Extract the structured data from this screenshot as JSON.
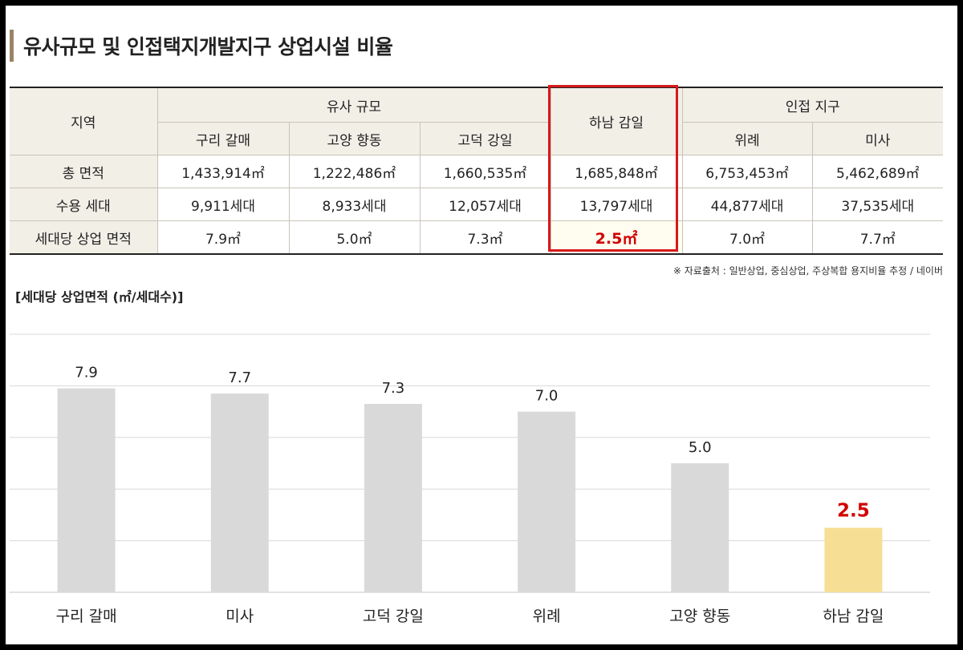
{
  "title": "유사규모 및 인접택지개발지구 상업시설 비율",
  "table": {
    "corner": "지역",
    "groups": [
      "유사 규모",
      "하남 감일",
      "인접 지구"
    ],
    "columns": [
      "구리 갈매",
      "고양 향동",
      "고덕 강일",
      "하남 감일",
      "위례",
      "미사"
    ],
    "rows": [
      {
        "label": "총 면적",
        "values": [
          "1,433,914㎡",
          "1,222,486㎡",
          "1,660,535㎡",
          "1,685,848㎡",
          "6,753,453㎡",
          "5,462,689㎡"
        ]
      },
      {
        "label": "수용 세대",
        "values": [
          "9,911세대",
          "8,933세대",
          "12,057세대",
          "13,797세대",
          "44,877세대",
          "37,535세대"
        ]
      },
      {
        "label": "세대당 상업 면적",
        "values": [
          "7.9㎡",
          "5.0㎡",
          "7.3㎡",
          "2.5㎡",
          "7.0㎡",
          "7.7㎡"
        ]
      }
    ]
  },
  "source": "※ 자료출처 : 일반상업, 중심상업, 주상복합 용지비율 추정 / 네이버",
  "chart_title": "[세대당 상업면적 (㎡/세대수)]",
  "chart_data": {
    "type": "bar",
    "title": "[세대당 상업면적 (㎡/세대수)]",
    "categories": [
      "구리 갈매",
      "미사",
      "고덕 강일",
      "위례",
      "고양 향동",
      "하남 감일"
    ],
    "values": [
      7.9,
      7.7,
      7.3,
      7.0,
      5.0,
      2.5
    ],
    "value_labels": [
      "7.9",
      "7.7",
      "7.3",
      "7.0",
      "5.0",
      "2.5"
    ],
    "highlight_index": 5,
    "ylim": [
      0,
      10
    ],
    "grid": true,
    "colors": {
      "bar": "#d9d9d9",
      "highlight_bar": "#f6df94",
      "highlight_label": "#d10000",
      "label": "#222222",
      "grid": "#d8d8d8"
    }
  },
  "colors": {
    "title_accent": "#9a8466",
    "header_bg": "#f2efe7",
    "highlight_border": "#d61a1a",
    "highlight_text": "#d10000"
  }
}
